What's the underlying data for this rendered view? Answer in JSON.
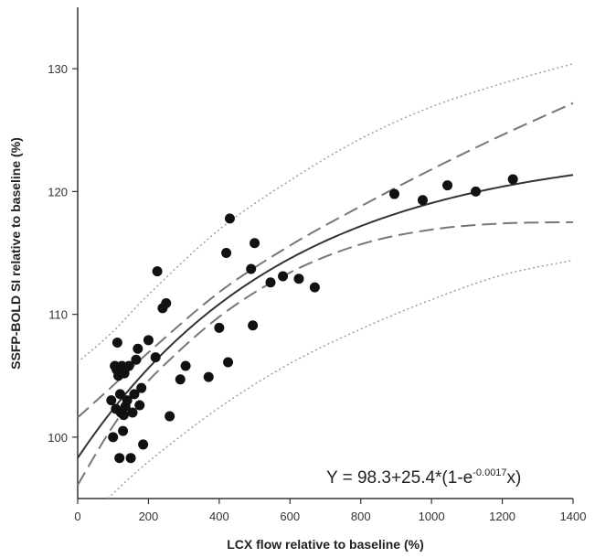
{
  "chart_data": {
    "type": "scatter",
    "title": "",
    "xlabel": "LCX flow relative to baseline (%)",
    "ylabel": "SSFP-BOLD SI relative to baseline (%)",
    "xlim": [
      0,
      1400
    ],
    "ylim": [
      95,
      135
    ],
    "xticks": [
      0,
      200,
      400,
      600,
      800,
      1000,
      1200,
      1400
    ],
    "yticks": [
      100,
      110,
      120,
      130
    ],
    "grid": false,
    "legend": "none",
    "equation": {
      "prefix": "Y = 98.3+25.4*(1-e",
      "exponent": "-0.0017",
      "suffix": "x)"
    },
    "fit": {
      "name": "fit",
      "formula": "98.3+25.4*(1-exp(-0.0017*x))",
      "a": 98.3,
      "b": 25.4,
      "k": 0.0017,
      "style": "solid",
      "color": "#333333"
    },
    "bands": [
      {
        "role": "confidence-upper",
        "style": "dashed",
        "color": "#777777",
        "x": [
          0,
          100,
          200,
          400,
          600,
          800,
          1000,
          1200,
          1400
        ],
        "y": [
          101.6,
          104.2,
          106.9,
          111.8,
          115.6,
          118.8,
          121.8,
          124.6,
          127.2
        ]
      },
      {
        "role": "confidence-lower",
        "style": "dashed",
        "color": "#777777",
        "x": [
          0,
          100,
          200,
          400,
          600,
          800,
          1000,
          1200,
          1400
        ],
        "y": [
          96.1,
          100.9,
          104.6,
          109.8,
          113.4,
          115.7,
          116.9,
          117.4,
          117.5
        ]
      },
      {
        "role": "prediction-upper",
        "style": "dotted",
        "color": "#999999",
        "x": [
          0,
          100,
          200,
          400,
          600,
          800,
          1000,
          1200,
          1400
        ],
        "y": [
          106.1,
          108.6,
          111.6,
          116.9,
          120.9,
          124.3,
          126.9,
          128.8,
          130.4
        ]
      },
      {
        "role": "prediction-lower",
        "style": "dotted",
        "color": "#999999",
        "x": [
          85,
          200,
          400,
          600,
          800,
          1000,
          1200,
          1400
        ],
        "y": [
          95.0,
          98.0,
          102.4,
          106.0,
          108.8,
          111.2,
          113.2,
          114.4
        ]
      }
    ],
    "points": {
      "x": [
        95,
        100,
        105,
        108,
        110,
        112,
        115,
        118,
        120,
        122,
        125,
        128,
        130,
        132,
        135,
        140,
        145,
        150,
        155,
        160,
        165,
        170,
        175,
        180,
        185,
        200,
        220,
        225,
        240,
        250,
        260,
        290,
        305,
        370,
        400,
        420,
        425,
        430,
        490,
        495,
        500,
        545,
        580,
        625,
        670,
        895,
        975,
        1045,
        1125,
        1230
      ],
      "y": [
        103.0,
        100.0,
        105.8,
        102.3,
        105.5,
        107.7,
        105.0,
        98.3,
        103.5,
        102.0,
        105.8,
        100.5,
        101.8,
        105.2,
        102.5,
        103.0,
        105.8,
        98.3,
        102.0,
        103.5,
        106.3,
        107.2,
        102.6,
        104.0,
        99.4,
        107.9,
        106.5,
        113.5,
        110.5,
        110.9,
        101.7,
        104.7,
        105.8,
        104.9,
        108.9,
        115.0,
        106.1,
        117.8,
        113.7,
        109.1,
        115.8,
        112.6,
        113.1,
        112.9,
        112.2,
        119.8,
        119.3,
        120.5,
        120.0,
        121.0
      ]
    }
  }
}
